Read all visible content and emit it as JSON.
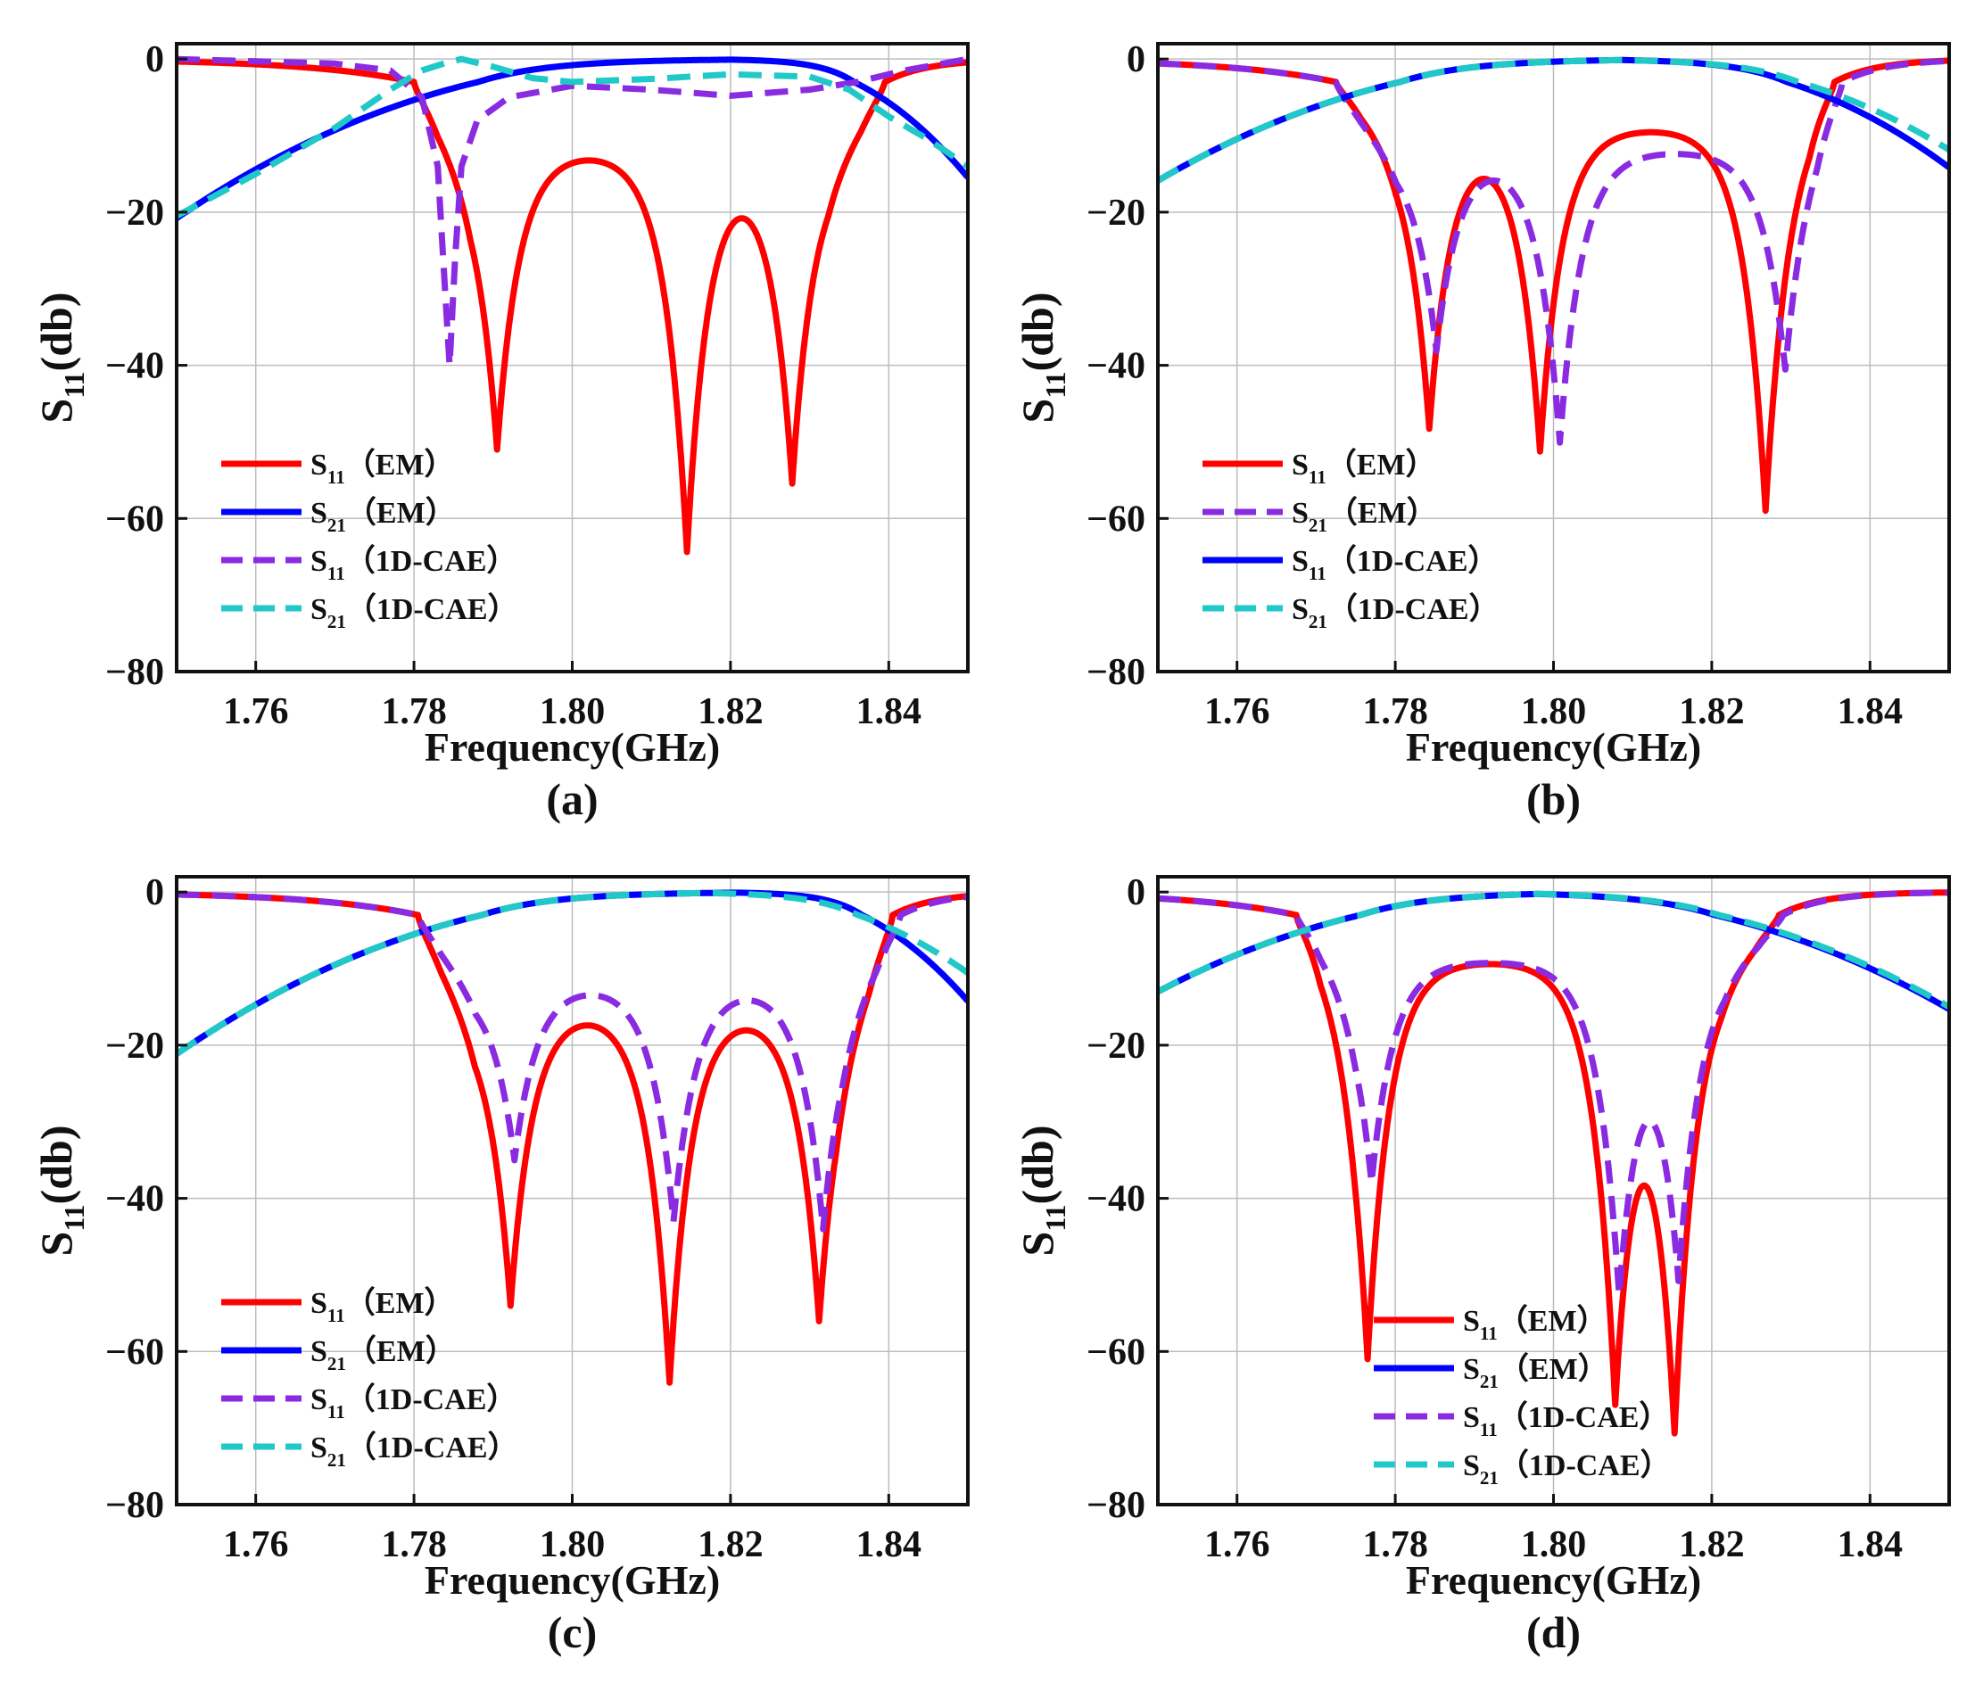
{
  "figure": {
    "background": "#ffffff",
    "grid_color": "#bdbdbd",
    "axis_color": "#111111"
  },
  "chart_data": [
    {
      "panel_label": "(a)",
      "type": "line",
      "xlabel": "Frequency(GHz)",
      "ylabel": {
        "base": "S",
        "sub": "11",
        "suffix": "(db)"
      },
      "xlim": [
        1.75,
        1.85
      ],
      "ylim": [
        -80,
        2
      ],
      "xticks": [
        1.76,
        1.78,
        1.8,
        1.82,
        1.84
      ],
      "yticks": [
        0,
        -20,
        -40,
        -60,
        -80
      ],
      "grid": true,
      "legend_position": "bottom-left",
      "series": [
        {
          "name": {
            "base": "S",
            "sub": "11",
            "suffix": "（EM）"
          },
          "color": "#ff0000",
          "dash": "solid",
          "model": "s11",
          "dips": [
            1.7905,
            1.8145,
            1.8278
          ],
          "depths": [
            -51,
            -64,
            -55
          ],
          "edge_lo": 1.78,
          "edge_hi": 1.8395,
          "ripple": -12
        },
        {
          "name": {
            "base": "S",
            "sub": "21",
            "suffix": "（EM）"
          },
          "color": "#0000ff",
          "dash": "solid",
          "model": "s21",
          "edge_lo": 1.78,
          "edge_hi": 1.8395,
          "rise_lo": 0.027,
          "rise_hi": 0.013
        },
        {
          "name": {
            "base": "S",
            "sub": "11",
            "suffix": "（1D-CAE）"
          },
          "color": "#8a2be2",
          "dash": "dashed",
          "points": [
            [
              1.75,
              0
            ],
            [
              1.77,
              -0.6
            ],
            [
              1.777,
              -1.5
            ],
            [
              1.781,
              -5
            ],
            [
              1.783,
              -14
            ],
            [
              1.7838,
              -28
            ],
            [
              1.7845,
              -40
            ],
            [
              1.7852,
              -26
            ],
            [
              1.786,
              -14
            ],
            [
              1.788,
              -8
            ],
            [
              1.792,
              -5
            ],
            [
              1.8,
              -3.5
            ],
            [
              1.81,
              -4
            ],
            [
              1.82,
              -4.8
            ],
            [
              1.83,
              -4
            ],
            [
              1.836,
              -3
            ],
            [
              1.842,
              -1.5
            ],
            [
              1.85,
              0
            ]
          ]
        },
        {
          "name": {
            "base": "S",
            "sub": "21",
            "suffix": "（1D-CAE）"
          },
          "color": "#20c8c8",
          "dash": "dashed",
          "points": [
            [
              1.75,
              -20.5
            ],
            [
              1.76,
              -15
            ],
            [
              1.77,
              -9
            ],
            [
              1.777,
              -4
            ],
            [
              1.781,
              -1.5
            ],
            [
              1.784,
              -0.5
            ],
            [
              1.786,
              0
            ],
            [
              1.79,
              -1
            ],
            [
              1.795,
              -2.5
            ],
            [
              1.8,
              -3
            ],
            [
              1.81,
              -2.6
            ],
            [
              1.82,
              -2
            ],
            [
              1.83,
              -2.3
            ],
            [
              1.835,
              -4
            ],
            [
              1.84,
              -7.5
            ],
            [
              1.845,
              -10.5
            ],
            [
              1.85,
              -14
            ]
          ]
        }
      ]
    },
    {
      "panel_label": "(b)",
      "type": "line",
      "xlabel": "Frequency(GHz)",
      "ylabel": {
        "base": "S",
        "sub": "11",
        "suffix": "(db)"
      },
      "xlim": [
        1.75,
        1.85
      ],
      "ylim": [
        -80,
        2
      ],
      "xticks": [
        1.76,
        1.78,
        1.8,
        1.82,
        1.84
      ],
      "yticks": [
        0,
        -20,
        -40,
        -60,
        -80
      ],
      "grid": true,
      "legend_position": "bottom-left",
      "series": [
        {
          "name": {
            "base": "S",
            "sub": "11",
            "suffix": "（EM）"
          },
          "color": "#ff0000",
          "dash": "solid",
          "model": "s11",
          "dips": [
            1.7843,
            1.7983,
            1.8268
          ],
          "depths": [
            -48,
            -51,
            -59
          ],
          "edge_lo": 1.7725,
          "edge_hi": 1.8355,
          "ripple": -9
        },
        {
          "name": {
            "base": "S",
            "sub": "21",
            "suffix": "（EM）"
          },
          "color": "#8a2be2",
          "dash": "dashed",
          "model": "s11",
          "dips": [
            1.7852,
            1.8008,
            1.8293
          ],
          "depths": [
            -38,
            -50,
            -41
          ],
          "edge_lo": 1.7725,
          "edge_hi": 1.8365,
          "ripple": -12
        },
        {
          "name": {
            "base": "S",
            "sub": "11",
            "suffix": "（1D-CAE）"
          },
          "color": "#0000ff",
          "dash": "solid",
          "model": "s21",
          "edge_lo": 1.7725,
          "edge_hi": 1.8355,
          "rise_lo": 0.027,
          "rise_hi": 0.02
        },
        {
          "name": {
            "base": "S",
            "sub": "21",
            "suffix": "（1D-CAE）"
          },
          "color": "#20c8c8",
          "dash": "dashed",
          "model": "s21",
          "edge_lo": 1.7725,
          "edge_hi": 1.8375,
          "rise_lo": 0.027,
          "rise_hi": 0.022
        }
      ]
    },
    {
      "panel_label": "(c)",
      "type": "line",
      "xlabel": "Frequency(GHz)",
      "ylabel": {
        "base": "S",
        "sub": "11",
        "suffix": "(db)"
      },
      "xlim": [
        1.75,
        1.85
      ],
      "ylim": [
        -80,
        2
      ],
      "xticks": [
        1.76,
        1.78,
        1.8,
        1.82,
        1.84
      ],
      "yticks": [
        0,
        -20,
        -40,
        -60,
        -80
      ],
      "grid": true,
      "legend_position": "bottom-left",
      "series": [
        {
          "name": {
            "base": "S",
            "sub": "11",
            "suffix": "（EM）"
          },
          "color": "#ff0000",
          "dash": "solid",
          "model": "s11",
          "dips": [
            1.7922,
            1.8123,
            1.8312
          ],
          "depths": [
            -54,
            -64,
            -56
          ],
          "edge_lo": 1.7805,
          "edge_hi": 1.8405,
          "ripple": -15
        },
        {
          "name": {
            "base": "S",
            "sub": "21",
            "suffix": "（EM）"
          },
          "color": "#0000ff",
          "dash": "solid",
          "model": "s21",
          "edge_lo": 1.7805,
          "edge_hi": 1.8405,
          "rise_lo": 0.027,
          "rise_hi": 0.013
        },
        {
          "name": {
            "base": "S",
            "sub": "11",
            "suffix": "（1D-CAE）"
          },
          "color": "#8a2be2",
          "dash": "dashed",
          "model": "s11",
          "dips": [
            1.7927,
            1.8128,
            1.8317
          ],
          "depths": [
            -35,
            -43,
            -44
          ],
          "edge_lo": 1.7805,
          "edge_hi": 1.8415,
          "ripple": -12
        },
        {
          "name": {
            "base": "S",
            "sub": "21",
            "suffix": "（1D-CAE）"
          },
          "color": "#20c8c8",
          "dash": "dashed",
          "model": "s21",
          "edge_lo": 1.7805,
          "edge_hi": 1.8415,
          "rise_lo": 0.027,
          "rise_hi": 0.018
        }
      ]
    },
    {
      "panel_label": "(d)",
      "type": "line",
      "xlabel": "Frequency(GHz)",
      "ylabel": {
        "base": "S",
        "sub": "11",
        "suffix": "(db)"
      },
      "xlim": [
        1.75,
        1.85
      ],
      "ylim": [
        -80,
        2
      ],
      "xticks": [
        1.76,
        1.78,
        1.8,
        1.82,
        1.84
      ],
      "yticks": [
        0,
        -20,
        -40,
        -60,
        -80
      ],
      "grid": true,
      "legend_position": "bottom-center",
      "series": [
        {
          "name": {
            "base": "S",
            "sub": "11",
            "suffix": "（EM）"
          },
          "color": "#ff0000",
          "dash": "solid",
          "model": "s11",
          "dips": [
            1.7765,
            1.8078,
            1.8153
          ],
          "depths": [
            -61,
            -63,
            -67
          ],
          "edge_lo": 1.7675,
          "edge_hi": 1.8285,
          "ripple": -9
        },
        {
          "name": {
            "base": "S",
            "sub": "21",
            "suffix": "（EM）"
          },
          "color": "#0000ff",
          "dash": "solid",
          "model": "s21",
          "edge_lo": 1.7675,
          "edge_hi": 1.8285,
          "rise_lo": 0.027,
          "rise_hi": 0.027
        },
        {
          "name": {
            "base": "S",
            "sub": "11",
            "suffix": "（1D-CAE）"
          },
          "color": "#8a2be2",
          "dash": "dashed",
          "model": "s11",
          "dips": [
            1.777,
            1.8083,
            1.8158
          ],
          "depths": [
            -38,
            -50,
            -48
          ],
          "edge_lo": 1.7675,
          "edge_hi": 1.829,
          "ripple": -9
        },
        {
          "name": {
            "base": "S",
            "sub": "21",
            "suffix": "（1D-CAE）"
          },
          "color": "#20c8c8",
          "dash": "dashed",
          "model": "s21",
          "edge_lo": 1.7675,
          "edge_hi": 1.829,
          "rise_lo": 0.027,
          "rise_hi": 0.027
        }
      ]
    }
  ]
}
